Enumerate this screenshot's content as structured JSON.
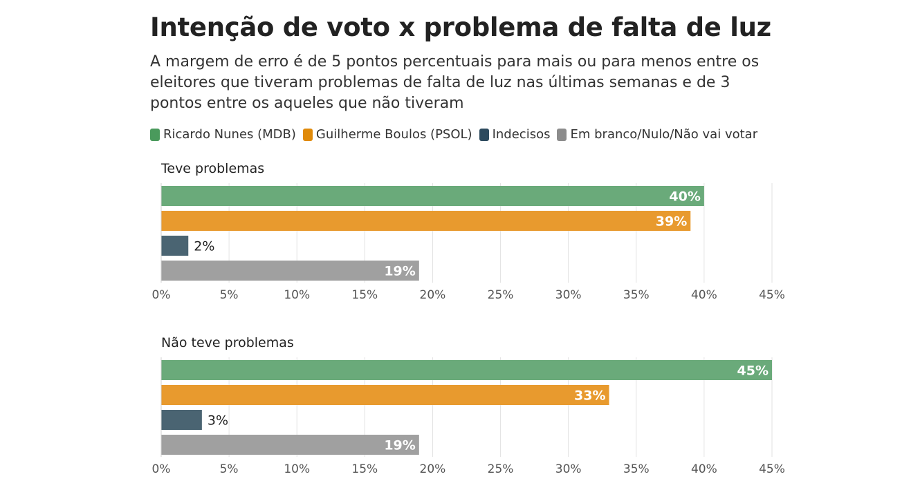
{
  "title": "Intenção de voto x problema de falta de luz",
  "subtitle": "A margem de erro é de 5 pontos percentuais para mais ou para menos entre os eleitores que tiveram problemas de falta de luz nas últimas semanas e de 3 pontos entre os aqueles que não tiveram",
  "legend": [
    {
      "label": "Ricardo Nunes (MDB)",
      "color": "#4a9a5c"
    },
    {
      "label": "Guilherme Boulos (PSOL)",
      "color": "#e08a0a"
    },
    {
      "label": "Indecisos",
      "color": "#2c4a5e"
    },
    {
      "label": "Em branco/Nulo/Não vai votar",
      "color": "#8c8c8c"
    }
  ],
  "chart_data": {
    "type": "bar",
    "orientation": "horizontal",
    "xlim": [
      0,
      45
    ],
    "x_ticks": [
      "0%",
      "5%",
      "10%",
      "15%",
      "20%",
      "25%",
      "30%",
      "35%",
      "40%",
      "45%"
    ],
    "x_tick_values": [
      0,
      5,
      10,
      15,
      20,
      25,
      30,
      35,
      40,
      45
    ],
    "grid": "vertical",
    "categories": [
      "Ricardo Nunes (MDB)",
      "Guilherme Boulos (PSOL)",
      "Indecisos",
      "Em branco/Nulo/Não vai votar"
    ],
    "colors": [
      "#6aaa7a",
      "#e89a2e",
      "#4a6472",
      "#a0a0a0"
    ],
    "panels": [
      {
        "title": "Teve problemas",
        "values": [
          40,
          39,
          2,
          19
        ],
        "labels": [
          "40%",
          "39%",
          "2%",
          "19%"
        ]
      },
      {
        "title": "Não teve problemas",
        "values": [
          45,
          33,
          3,
          19
        ],
        "labels": [
          "45%",
          "33%",
          "3%",
          "19%"
        ]
      }
    ]
  }
}
